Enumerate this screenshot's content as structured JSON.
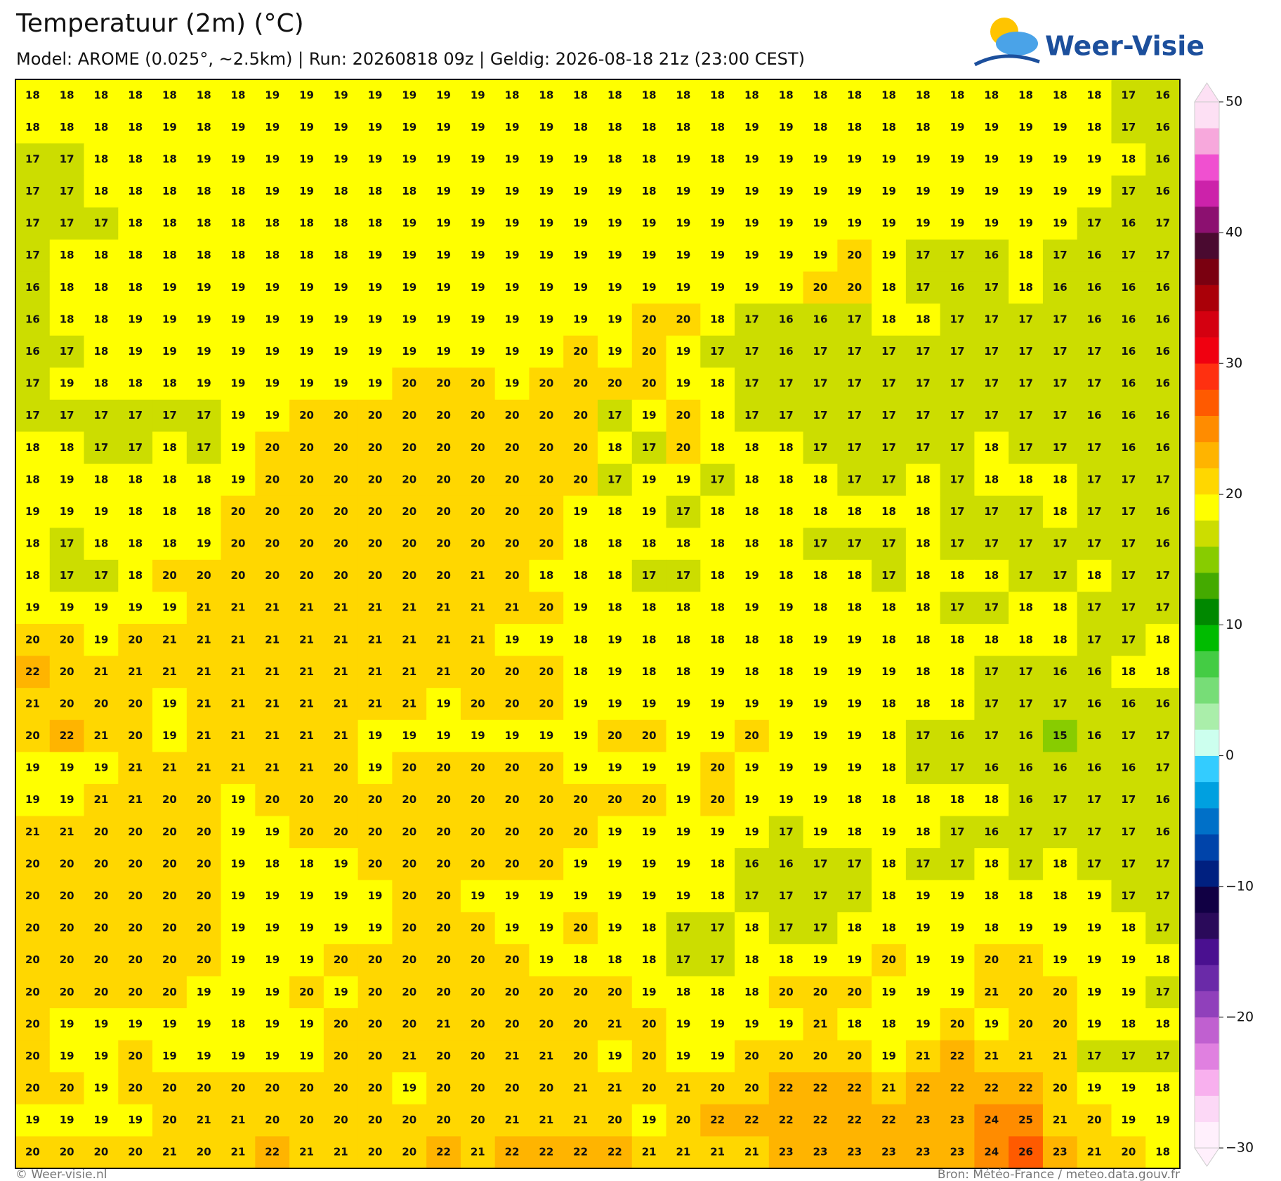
{
  "header": {
    "title": "Temperatuur (2m) (°C)",
    "subtitle": "Model: AROME (0.025°, ~2.5km)  |  Run: 20260818 09z  |  Geldig: 2026-08-18 21z (23:00 CEST)",
    "logo": "Weer-Visie"
  },
  "grid": {
    "rows": [
      [
        18,
        18,
        18,
        18,
        18,
        18,
        18,
        19,
        19,
        19,
        19,
        19,
        19,
        19,
        18,
        18,
        18,
        18,
        18,
        18,
        18,
        18,
        18,
        18,
        18,
        18,
        18,
        18,
        18,
        18,
        18,
        18,
        17,
        16
      ],
      [
        18,
        18,
        18,
        18,
        19,
        18,
        19,
        19,
        19,
        19,
        19,
        19,
        19,
        19,
        19,
        19,
        18,
        18,
        18,
        18,
        18,
        19,
        19,
        18,
        18,
        18,
        18,
        19,
        19,
        19,
        19,
        18,
        17,
        16
      ],
      [
        17,
        17,
        18,
        18,
        18,
        19,
        19,
        19,
        19,
        19,
        19,
        19,
        19,
        19,
        19,
        19,
        19,
        18,
        18,
        19,
        18,
        19,
        19,
        19,
        19,
        19,
        19,
        19,
        19,
        19,
        19,
        19,
        18,
        16
      ],
      [
        17,
        17,
        18,
        18,
        18,
        18,
        18,
        19,
        19,
        18,
        18,
        18,
        19,
        19,
        19,
        19,
        19,
        19,
        18,
        19,
        19,
        19,
        19,
        19,
        19,
        19,
        19,
        19,
        19,
        19,
        19,
        19,
        17,
        16
      ],
      [
        17,
        17,
        17,
        18,
        18,
        18,
        18,
        18,
        18,
        18,
        18,
        19,
        19,
        19,
        19,
        19,
        19,
        19,
        19,
        19,
        19,
        19,
        19,
        19,
        19,
        19,
        19,
        19,
        19,
        19,
        19,
        17,
        16,
        17
      ],
      [
        17,
        18,
        18,
        18,
        18,
        18,
        18,
        18,
        18,
        18,
        19,
        19,
        19,
        19,
        19,
        19,
        19,
        19,
        19,
        19,
        19,
        19,
        19,
        19,
        20,
        19,
        17,
        17,
        16,
        18,
        17,
        16,
        17,
        17
      ],
      [
        16,
        18,
        18,
        18,
        19,
        19,
        19,
        19,
        19,
        19,
        19,
        19,
        19,
        19,
        19,
        19,
        19,
        19,
        19,
        19,
        19,
        19,
        19,
        20,
        20,
        18,
        17,
        16,
        17,
        18,
        16,
        16,
        16,
        16
      ],
      [
        16,
        18,
        18,
        19,
        19,
        19,
        19,
        19,
        19,
        19,
        19,
        19,
        19,
        19,
        19,
        19,
        19,
        19,
        20,
        20,
        18,
        17,
        16,
        16,
        17,
        18,
        18,
        17,
        17,
        17,
        17,
        16,
        16,
        16
      ],
      [
        16,
        17,
        18,
        19,
        19,
        19,
        19,
        19,
        19,
        19,
        19,
        19,
        19,
        19,
        19,
        19,
        20,
        19,
        20,
        19,
        17,
        17,
        16,
        17,
        17,
        17,
        17,
        17,
        17,
        17,
        17,
        17,
        16,
        16
      ],
      [
        17,
        19,
        18,
        18,
        18,
        19,
        19,
        19,
        19,
        19,
        19,
        20,
        20,
        20,
        19,
        20,
        20,
        20,
        20,
        19,
        18,
        17,
        17,
        17,
        17,
        17,
        17,
        17,
        17,
        17,
        17,
        17,
        16,
        16
      ],
      [
        17,
        17,
        17,
        17,
        17,
        17,
        19,
        19,
        20,
        20,
        20,
        20,
        20,
        20,
        20,
        20,
        20,
        17,
        19,
        20,
        18,
        17,
        17,
        17,
        17,
        17,
        17,
        17,
        17,
        17,
        17,
        16,
        16,
        16
      ],
      [
        18,
        18,
        17,
        17,
        18,
        17,
        19,
        20,
        20,
        20,
        20,
        20,
        20,
        20,
        20,
        20,
        20,
        18,
        17,
        20,
        18,
        18,
        18,
        17,
        17,
        17,
        17,
        17,
        18,
        17,
        17,
        17,
        16,
        16
      ],
      [
        18,
        19,
        18,
        18,
        18,
        18,
        19,
        20,
        20,
        20,
        20,
        20,
        20,
        20,
        20,
        20,
        20,
        17,
        19,
        19,
        17,
        18,
        18,
        18,
        17,
        17,
        18,
        17,
        18,
        18,
        18,
        17,
        17,
        17
      ],
      [
        19,
        19,
        19,
        18,
        18,
        18,
        20,
        20,
        20,
        20,
        20,
        20,
        20,
        20,
        20,
        20,
        19,
        18,
        19,
        17,
        18,
        18,
        18,
        18,
        18,
        18,
        18,
        17,
        17,
        17,
        18,
        17,
        17,
        16
      ],
      [
        18,
        17,
        18,
        18,
        18,
        19,
        20,
        20,
        20,
        20,
        20,
        20,
        20,
        20,
        20,
        20,
        18,
        18,
        18,
        18,
        18,
        18,
        18,
        17,
        17,
        17,
        18,
        17,
        17,
        17,
        17,
        17,
        17,
        16
      ],
      [
        18,
        17,
        17,
        18,
        20,
        20,
        20,
        20,
        20,
        20,
        20,
        20,
        20,
        21,
        20,
        18,
        18,
        18,
        17,
        17,
        18,
        19,
        18,
        18,
        18,
        17,
        18,
        18,
        18,
        17,
        17,
        18,
        17,
        17
      ],
      [
        19,
        19,
        19,
        19,
        19,
        21,
        21,
        21,
        21,
        21,
        21,
        21,
        21,
        21,
        21,
        20,
        19,
        18,
        18,
        18,
        18,
        19,
        19,
        18,
        18,
        18,
        18,
        17,
        17,
        18,
        18,
        17,
        17,
        17
      ],
      [
        20,
        20,
        19,
        20,
        21,
        21,
        21,
        21,
        21,
        21,
        21,
        21,
        21,
        21,
        19,
        19,
        18,
        19,
        18,
        18,
        18,
        18,
        18,
        19,
        19,
        18,
        18,
        18,
        18,
        18,
        18,
        17,
        17,
        18
      ],
      [
        22,
        20,
        21,
        21,
        21,
        21,
        21,
        21,
        21,
        21,
        21,
        21,
        21,
        20,
        20,
        20,
        18,
        19,
        18,
        18,
        19,
        18,
        18,
        19,
        19,
        19,
        18,
        18,
        17,
        17,
        16,
        16,
        18,
        18
      ],
      [
        21,
        20,
        20,
        20,
        19,
        21,
        21,
        21,
        21,
        21,
        21,
        21,
        19,
        20,
        20,
        20,
        19,
        19,
        19,
        19,
        19,
        19,
        19,
        19,
        19,
        18,
        18,
        18,
        17,
        17,
        17,
        16,
        16,
        16
      ],
      [
        20,
        22,
        21,
        20,
        19,
        21,
        21,
        21,
        21,
        21,
        19,
        19,
        19,
        19,
        19,
        19,
        19,
        20,
        20,
        19,
        19,
        20,
        19,
        19,
        19,
        18,
        17,
        16,
        17,
        16,
        15,
        16,
        17,
        17
      ],
      [
        19,
        19,
        19,
        21,
        21,
        21,
        21,
        21,
        21,
        20,
        19,
        20,
        20,
        20,
        20,
        20,
        19,
        19,
        19,
        19,
        20,
        19,
        19,
        19,
        19,
        18,
        17,
        17,
        16,
        16,
        16,
        16,
        16,
        17
      ],
      [
        19,
        19,
        21,
        21,
        20,
        20,
        19,
        20,
        20,
        20,
        20,
        20,
        20,
        20,
        20,
        20,
        20,
        20,
        20,
        19,
        20,
        19,
        19,
        19,
        18,
        18,
        18,
        18,
        18,
        16,
        17,
        17,
        17,
        16
      ],
      [
        21,
        21,
        20,
        20,
        20,
        20,
        19,
        19,
        20,
        20,
        20,
        20,
        20,
        20,
        20,
        20,
        20,
        19,
        19,
        19,
        19,
        19,
        17,
        19,
        18,
        19,
        18,
        17,
        16,
        17,
        17,
        17,
        17,
        16
      ],
      [
        20,
        20,
        20,
        20,
        20,
        20,
        19,
        18,
        18,
        19,
        20,
        20,
        20,
        20,
        20,
        20,
        19,
        19,
        19,
        19,
        18,
        16,
        16,
        17,
        17,
        18,
        17,
        17,
        18,
        17,
        18,
        17,
        17,
        17
      ],
      [
        20,
        20,
        20,
        20,
        20,
        20,
        19,
        19,
        19,
        19,
        19,
        20,
        20,
        19,
        19,
        19,
        19,
        19,
        19,
        19,
        18,
        17,
        17,
        17,
        17,
        18,
        19,
        19,
        18,
        18,
        18,
        19,
        17,
        17
      ],
      [
        20,
        20,
        20,
        20,
        20,
        20,
        19,
        19,
        19,
        19,
        19,
        20,
        20,
        20,
        19,
        19,
        20,
        19,
        18,
        17,
        17,
        18,
        17,
        17,
        18,
        18,
        19,
        19,
        18,
        19,
        19,
        19,
        18,
        17
      ],
      [
        20,
        20,
        20,
        20,
        20,
        20,
        19,
        19,
        19,
        20,
        20,
        20,
        20,
        20,
        20,
        19,
        18,
        18,
        18,
        17,
        17,
        18,
        18,
        19,
        19,
        20,
        19,
        19,
        20,
        21,
        19,
        19,
        19,
        18
      ],
      [
        20,
        20,
        20,
        20,
        20,
        19,
        19,
        19,
        20,
        19,
        20,
        20,
        20,
        20,
        20,
        20,
        20,
        20,
        19,
        18,
        18,
        18,
        20,
        20,
        20,
        19,
        19,
        19,
        21,
        20,
        20,
        19,
        19,
        17
      ],
      [
        20,
        19,
        19,
        19,
        19,
        19,
        18,
        19,
        19,
        20,
        20,
        20,
        21,
        20,
        20,
        20,
        20,
        21,
        20,
        19,
        19,
        19,
        19,
        21,
        18,
        18,
        19,
        20,
        19,
        20,
        20,
        19,
        18,
        18
      ],
      [
        20,
        19,
        19,
        20,
        19,
        19,
        19,
        19,
        19,
        20,
        20,
        21,
        20,
        20,
        21,
        21,
        20,
        19,
        20,
        19,
        19,
        20,
        20,
        20,
        20,
        19,
        21,
        22,
        21,
        21,
        21,
        17,
        17,
        17
      ],
      [
        20,
        20,
        19,
        20,
        20,
        20,
        20,
        20,
        20,
        20,
        20,
        19,
        20,
        20,
        20,
        20,
        21,
        21,
        20,
        21,
        20,
        20,
        22,
        22,
        22,
        21,
        22,
        22,
        22,
        22,
        20,
        19,
        19,
        18
      ],
      [
        19,
        19,
        19,
        19,
        20,
        21,
        21,
        20,
        20,
        20,
        20,
        20,
        20,
        20,
        21,
        21,
        21,
        20,
        19,
        20,
        22,
        22,
        22,
        22,
        22,
        22,
        23,
        23,
        24,
        25,
        21,
        20,
        19,
        19
      ],
      [
        20,
        20,
        20,
        20,
        21,
        20,
        21,
        22,
        21,
        21,
        20,
        20,
        22,
        21,
        22,
        22,
        22,
        22,
        21,
        21,
        21,
        21,
        23,
        23,
        23,
        23,
        23,
        23,
        24,
        26,
        23,
        21,
        20,
        18
      ]
    ]
  },
  "colorbar": {
    "lim": [
      -30,
      50
    ],
    "ticks": [
      {
        "value": -30,
        "label": "−30"
      },
      {
        "value": -20,
        "label": "−20"
      },
      {
        "value": -10,
        "label": "−10"
      },
      0,
      10,
      20,
      30,
      40,
      50
    ],
    "colors": [
      "#fff0fc",
      "#fcd8f6",
      "#f8b0ee",
      "#e080e0",
      "#c060d0",
      "#9040bb",
      "#6a2aa8",
      "#4a1090",
      "#2a0a5a",
      "#110044",
      "#002080",
      "#0044aa",
      "#0070c8",
      "#00a0e0",
      "#33ccff",
      "#ccffee",
      "#aaeeaa",
      "#77dd77",
      "#44cc44",
      "#00bb00",
      "#008800",
      "#44aa00",
      "#88cc00",
      "#ccdd00",
      "#ffff00",
      "#ffd700",
      "#ffb400",
      "#ff8c00",
      "#ff5a00",
      "#ff3010",
      "#f00010",
      "#d40010",
      "#aa0008",
      "#7a0010",
      "#4a0a30",
      "#8c1070",
      "#cc22aa",
      "#f050d0",
      "#f7a8dc",
      "#fde0f4"
    ]
  },
  "footer": {
    "left": "© Weer-visie.nl",
    "right": "Bron: Météo-France / meteo.data.gouv.fr"
  }
}
